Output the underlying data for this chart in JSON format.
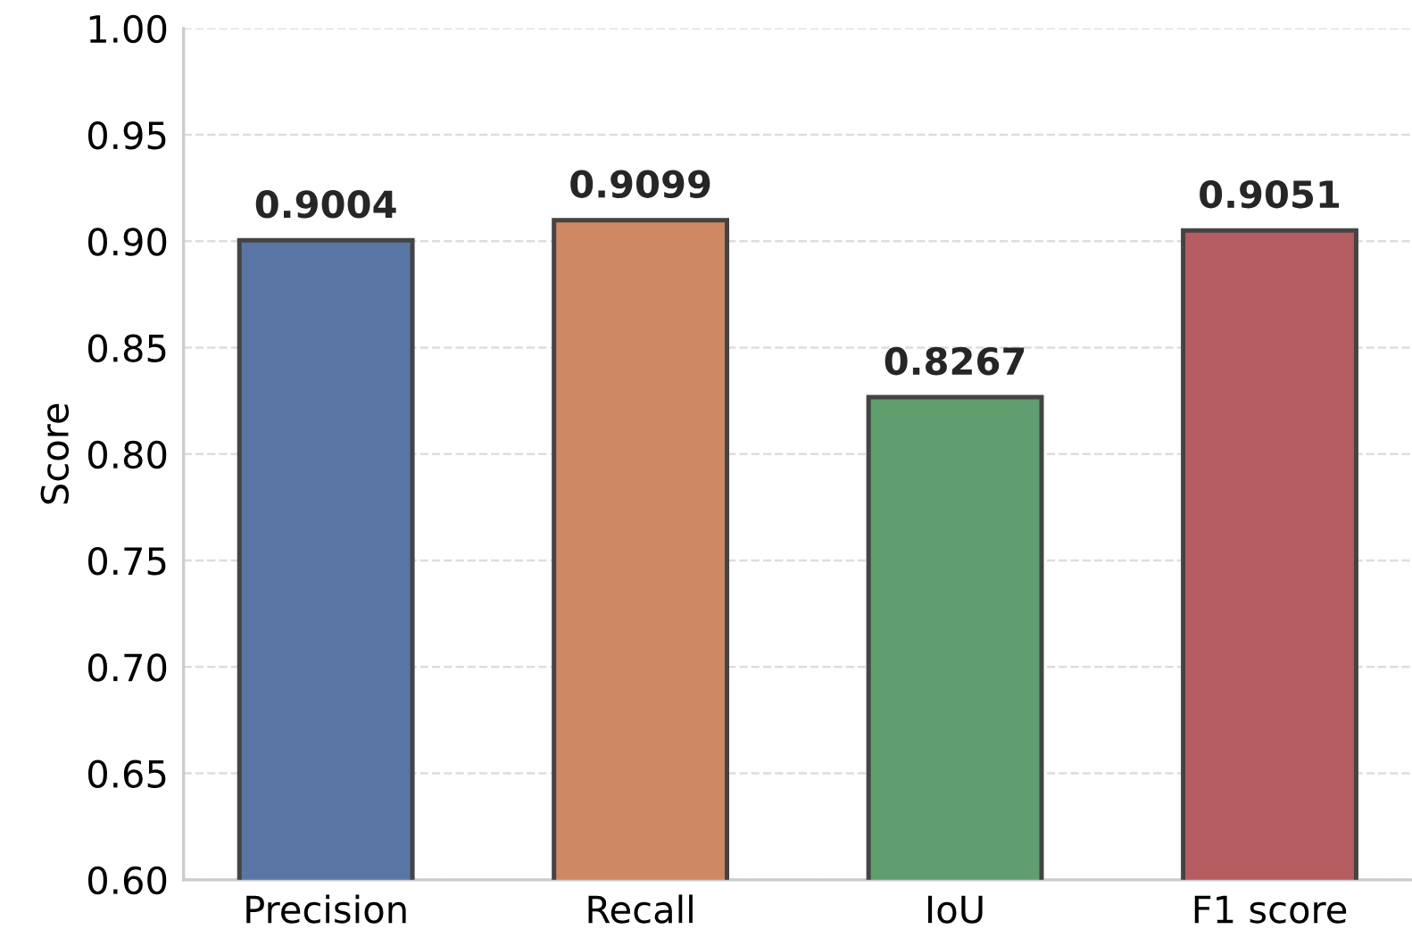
{
  "chart_data": {
    "type": "bar",
    "ylabel": "Score",
    "categories": [
      "Precision",
      "Recall",
      "IoU",
      "F1 score"
    ],
    "values": [
      0.9004,
      0.9099,
      0.8267,
      0.9051
    ],
    "colors": [
      "#5975a4",
      "#cc8963",
      "#5f9e6e",
      "#b55d60"
    ],
    "ylim": [
      0.6,
      1.0
    ],
    "yticks": [
      {
        "value": 0.6,
        "label": "0.60"
      },
      0.65,
      {
        "value": 0.7,
        "label": "0.70"
      },
      0.75,
      {
        "value": 0.8,
        "label": "0.80"
      },
      0.85,
      {
        "value": 0.9,
        "label": "0.90"
      },
      0.95,
      {
        "value": 1.0,
        "label": "1.00"
      }
    ],
    "grid": "y",
    "data_labels": true
  }
}
